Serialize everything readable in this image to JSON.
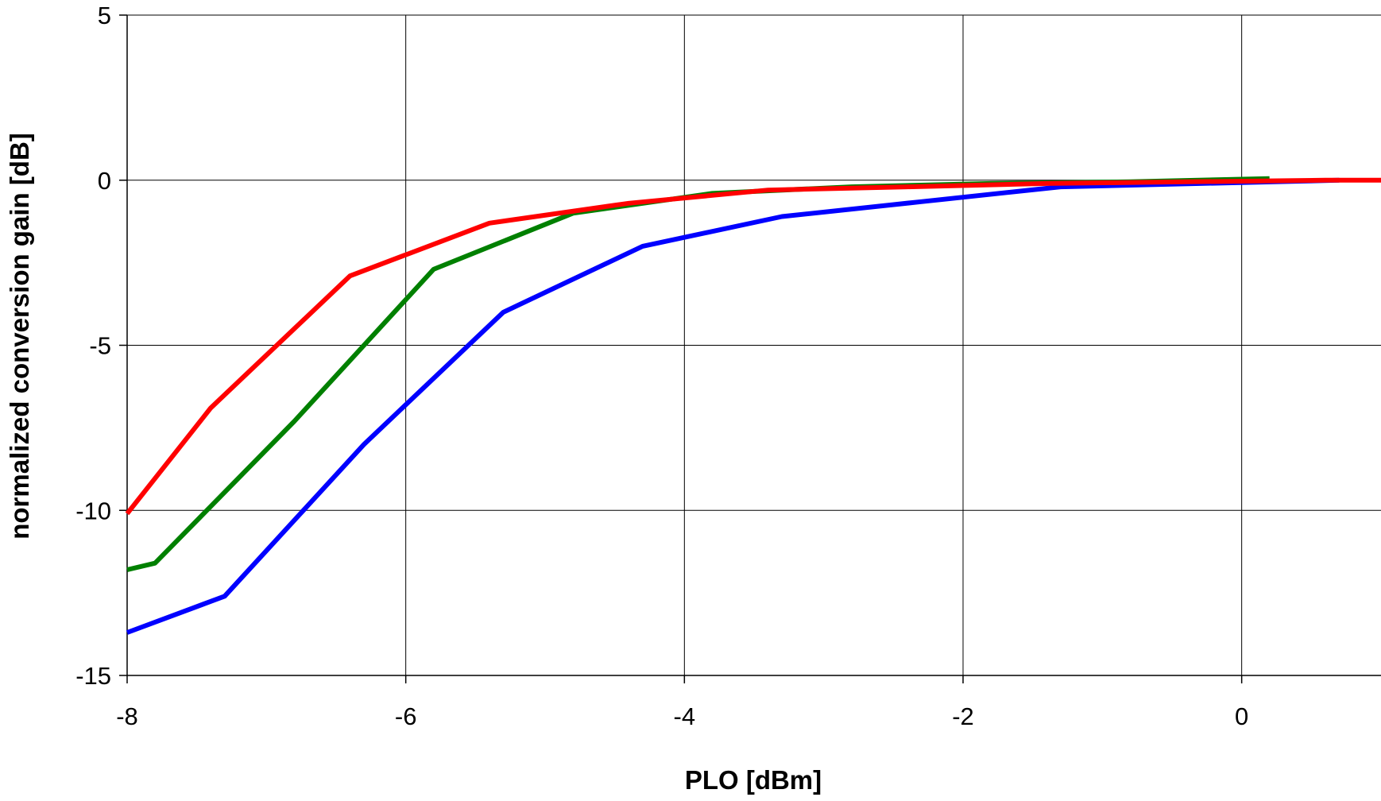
{
  "chart_data": {
    "type": "line",
    "title": "",
    "xlabel": "PLO [dBm]",
    "ylabel": "normalized conversion gain [dB]",
    "xlim": [
      -8,
      1
    ],
    "ylim": [
      -15,
      5
    ],
    "xticks": [
      -8,
      -6,
      -4,
      -2,
      0
    ],
    "yticks": [
      5,
      0,
      -5,
      -10,
      -15
    ],
    "xtick_labels": [
      "-8",
      "-6",
      "-4",
      "-2",
      "0"
    ],
    "ytick_labels": [
      "5",
      "0",
      "-5",
      "-10",
      "-15"
    ],
    "grid": true,
    "legend": "none",
    "series": [
      {
        "color": "#0000ff",
        "x": [
          -8,
          -7.3,
          -6.3,
          -5.3,
          -4.3,
          -3.3,
          -2.3,
          -1.3,
          -0.3,
          0.7
        ],
        "y": [
          -13.7,
          -12.6,
          -8.0,
          -4.0,
          -2.0,
          -1.1,
          -0.65,
          -0.2,
          -0.1,
          0
        ]
      },
      {
        "color": "#008000",
        "x": [
          -8,
          -7.8,
          -6.8,
          -5.8,
          -4.8,
          -3.8,
          -2.8,
          -1.8,
          -0.8,
          0.2
        ],
        "y": [
          -11.8,
          -11.6,
          -7.3,
          -2.7,
          -1.0,
          -0.4,
          -0.2,
          -0.1,
          -0.05,
          0.05
        ]
      },
      {
        "color": "#ff0000",
        "x": [
          -8,
          -7.4,
          -6.4,
          -5.4,
          -4.4,
          -3.4,
          -2.4,
          -1.4,
          -0.4,
          0.6,
          1
        ],
        "y": [
          -10.1,
          -6.9,
          -2.9,
          -1.3,
          -0.7,
          -0.3,
          -0.2,
          -0.1,
          -0.05,
          0,
          0
        ]
      }
    ]
  }
}
